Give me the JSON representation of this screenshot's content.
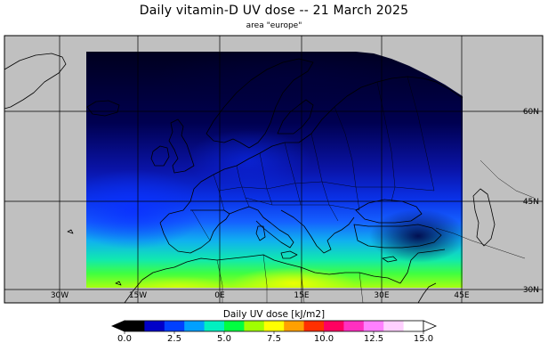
{
  "map": {
    "title": "Daily vitamin-D UV dose  --  21 March 2025",
    "subtitle": "area \"europe\"",
    "lon_labels": [
      "30W",
      "15W",
      "0E",
      "15E",
      "30E",
      "45E"
    ],
    "lat_labels": [
      "60N",
      "45N",
      "30N"
    ],
    "land_color": "#c0c0c0",
    "no_data_color": "#c0c0c0",
    "coast_color": "#000000",
    "grid_color": "#000000"
  },
  "colorbar": {
    "title": "Daily UV dose  [kJ/m2]",
    "tick_labels": [
      "0.0",
      "2.5",
      "5.0",
      "7.5",
      "10.0",
      "12.5",
      "15.0"
    ],
    "range": [
      0,
      15
    ],
    "colors": [
      "#000000",
      "#0000c8",
      "#0040ff",
      "#00a0ff",
      "#00f0c0",
      "#00ff40",
      "#a0ff00",
      "#ffff00",
      "#ffa000",
      "#ff3000",
      "#ff0060",
      "#ff30c0",
      "#ff80ff",
      "#ffd0ff",
      "#ffffff"
    ],
    "under_color": "#000000",
    "over_color": "#ffffff"
  }
}
